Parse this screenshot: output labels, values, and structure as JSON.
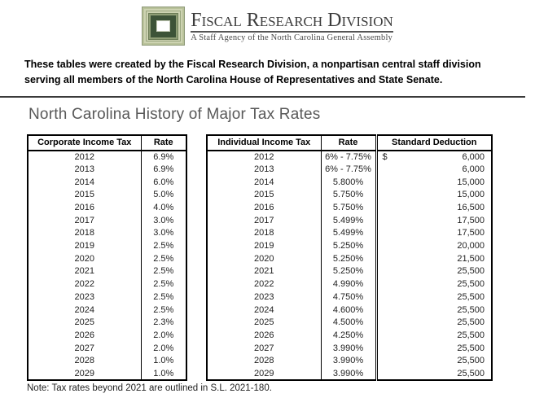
{
  "logo": {
    "title": "Fiscal Research Division",
    "subtitle": "A Staff Agency of the North Carolina General Assembly"
  },
  "intro": {
    "text": "These tables were created by the Fiscal Research Division, a nonpartisan central staff division serving all members of the North Carolina House of Representatives and State Senate."
  },
  "page_title": "North Carolina History of Major Tax Rates",
  "corporate_table": {
    "headers": {
      "year": "Corporate Income Tax",
      "rate": "Rate"
    },
    "rows": [
      {
        "year": "2012",
        "rate": "6.9%"
      },
      {
        "year": "2013",
        "rate": "6.9%"
      },
      {
        "year": "2014",
        "rate": "6.0%"
      },
      {
        "year": "2015",
        "rate": "5.0%"
      },
      {
        "year": "2016",
        "rate": "4.0%"
      },
      {
        "year": "2017",
        "rate": "3.0%"
      },
      {
        "year": "2018",
        "rate": "3.0%"
      },
      {
        "year": "2019",
        "rate": "2.5%"
      },
      {
        "year": "2020",
        "rate": "2.5%"
      },
      {
        "year": "2021",
        "rate": "2.5%"
      },
      {
        "year": "2022",
        "rate": "2.5%"
      },
      {
        "year": "2023",
        "rate": "2.5%"
      },
      {
        "year": "2024",
        "rate": "2.5%"
      },
      {
        "year": "2025",
        "rate": "2.3%"
      },
      {
        "year": "2026",
        "rate": "2.0%"
      },
      {
        "year": "2027",
        "rate": "2.0%"
      },
      {
        "year": "2028",
        "rate": "1.0%"
      },
      {
        "year": "2029",
        "rate": "1.0%"
      }
    ]
  },
  "individual_table": {
    "headers": {
      "year": "Individual Income Tax",
      "rate": "Rate",
      "sd": "Standard Deduction"
    },
    "rows": [
      {
        "year": "2012",
        "rate": "6% - 7.75%",
        "sd_prefix": "$",
        "sd": "6,000"
      },
      {
        "year": "2013",
        "rate": "6% - 7.75%",
        "sd_prefix": "",
        "sd": "6,000"
      },
      {
        "year": "2014",
        "rate": "5.800%",
        "sd_prefix": "",
        "sd": "15,000"
      },
      {
        "year": "2015",
        "rate": "5.750%",
        "sd_prefix": "",
        "sd": "15,000"
      },
      {
        "year": "2016",
        "rate": "5.750%",
        "sd_prefix": "",
        "sd": "16,500"
      },
      {
        "year": "2017",
        "rate": "5.499%",
        "sd_prefix": "",
        "sd": "17,500"
      },
      {
        "year": "2018",
        "rate": "5.499%",
        "sd_prefix": "",
        "sd": "17,500"
      },
      {
        "year": "2019",
        "rate": "5.250%",
        "sd_prefix": "",
        "sd": "20,000"
      },
      {
        "year": "2020",
        "rate": "5.250%",
        "sd_prefix": "",
        "sd": "21,500"
      },
      {
        "year": "2021",
        "rate": "5.250%",
        "sd_prefix": "",
        "sd": "25,500"
      },
      {
        "year": "2022",
        "rate": "4.990%",
        "sd_prefix": "",
        "sd": "25,500"
      },
      {
        "year": "2023",
        "rate": "4.750%",
        "sd_prefix": "",
        "sd": "25,500"
      },
      {
        "year": "2024",
        "rate": "4.600%",
        "sd_prefix": "",
        "sd": "25,500"
      },
      {
        "year": "2025",
        "rate": "4.500%",
        "sd_prefix": "",
        "sd": "25,500"
      },
      {
        "year": "2026",
        "rate": "4.250%",
        "sd_prefix": "",
        "sd": "25,500"
      },
      {
        "year": "2027",
        "rate": "3.990%",
        "sd_prefix": "",
        "sd": "25,500"
      },
      {
        "year": "2028",
        "rate": "3.990%",
        "sd_prefix": "",
        "sd": "25,500"
      },
      {
        "year": "2029",
        "rate": "3.990%",
        "sd_prefix": "",
        "sd": "25,500"
      }
    ]
  },
  "note": "Note: Tax rates beyond 2021 are outlined in S.L. 2021-180.",
  "colors": {
    "logo_green_dark": "#3d5338",
    "logo_green_mid": "#8e9d75",
    "logo_green_light": "#cdd3b2",
    "title_gray": "#595959",
    "table_border": "#000000"
  }
}
